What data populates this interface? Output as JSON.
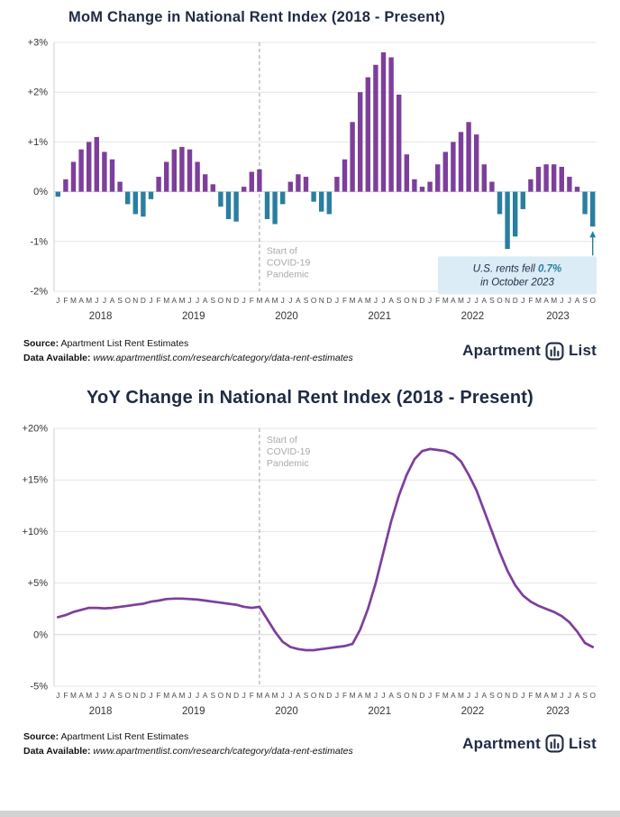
{
  "colors": {
    "title": "#1f2a44",
    "purple": "#7d3f9b",
    "teal": "#2a7e9f",
    "grid_line": "#e4e4e8",
    "zero_line": "#d6d6da",
    "axis_line": "#d0d0d4",
    "covid_line": "#b5b5b5",
    "covid_text": "#a9a9a9",
    "callout_bg": "#dcecf7",
    "bottom_strip": "#d2d2d2"
  },
  "footer": {
    "source_label": "Source:",
    "source_value": "Apartment List Rent Estimates",
    "data_label": "Data Available:",
    "data_value": "www.apartmentlist.com/research/category/data-rent-estimates",
    "logo_word1": "Apartment",
    "logo_word2": "List"
  },
  "chart_data": [
    {
      "type": "bar",
      "title": "MoM Change in National Rent Index (2018 - Present)",
      "ylim": [
        -2,
        3
      ],
      "yticks": [
        "+3%",
        "+2%",
        "+1%",
        "0%",
        "-1%",
        "-2%"
      ],
      "grid": true,
      "legend": "none",
      "month_letters": [
        "J",
        "F",
        "M",
        "A",
        "M",
        "J",
        "J",
        "A",
        "S",
        "O",
        "N",
        "D"
      ],
      "years": [
        {
          "label": "2018",
          "months": 12
        },
        {
          "label": "2019",
          "months": 12
        },
        {
          "label": "2020",
          "months": 12
        },
        {
          "label": "2021",
          "months": 12
        },
        {
          "label": "2022",
          "months": 12
        },
        {
          "label": "2023",
          "months": 10
        }
      ],
      "values": [
        -0.1,
        0.25,
        0.6,
        0.85,
        1.0,
        1.1,
        0.8,
        0.65,
        0.2,
        -0.25,
        -0.45,
        -0.5,
        -0.15,
        0.3,
        0.6,
        0.85,
        0.9,
        0.85,
        0.6,
        0.35,
        0.15,
        -0.3,
        -0.55,
        -0.6,
        0.1,
        0.4,
        0.45,
        -0.55,
        -0.65,
        -0.25,
        0.2,
        0.35,
        0.3,
        -0.2,
        -0.4,
        -0.45,
        0.3,
        0.65,
        1.4,
        2.0,
        2.3,
        2.55,
        2.8,
        2.7,
        1.95,
        0.75,
        0.25,
        0.1,
        0.2,
        0.55,
        0.8,
        1.0,
        1.2,
        1.4,
        1.15,
        0.55,
        0.2,
        -0.45,
        -1.15,
        -0.9,
        -0.35,
        0.25,
        0.5,
        0.55,
        0.55,
        0.5,
        0.3,
        0.1,
        -0.45,
        -0.7
      ],
      "bar_positive_color": "#7d3f9b",
      "bar_negative_color": "#2a7e9f",
      "covid": {
        "index": 26,
        "lines": [
          "Start of",
          "COVID-19",
          "Pandemic"
        ]
      },
      "callout": {
        "line1_prefix": "U.S. rents fell ",
        "line1_highlight": "0.7%",
        "line2": "in October 2023",
        "target_index": 69,
        "target_value": -0.7
      }
    },
    {
      "type": "line",
      "title": "YoY Change in National Rent Index (2018 - Present)",
      "ylim": [
        -5,
        20
      ],
      "yticks": [
        "+20%",
        "+15%",
        "+10%",
        "+5%",
        "0%",
        "-5%"
      ],
      "grid": true,
      "legend": "none",
      "month_letters": [
        "J",
        "F",
        "M",
        "A",
        "M",
        "J",
        "J",
        "A",
        "S",
        "O",
        "N",
        "D"
      ],
      "years": [
        {
          "label": "2018",
          "months": 12
        },
        {
          "label": "2019",
          "months": 12
        },
        {
          "label": "2020",
          "months": 12
        },
        {
          "label": "2021",
          "months": 12
        },
        {
          "label": "2022",
          "months": 12
        },
        {
          "label": "2023",
          "months": 10
        }
      ],
      "values": [
        1.7,
        1.9,
        2.2,
        2.4,
        2.6,
        2.6,
        2.55,
        2.6,
        2.7,
        2.8,
        2.9,
        3.0,
        3.2,
        3.3,
        3.45,
        3.5,
        3.5,
        3.45,
        3.4,
        3.3,
        3.2,
        3.1,
        3.0,
        2.9,
        2.7,
        2.6,
        2.7,
        1.5,
        0.3,
        -0.7,
        -1.2,
        -1.4,
        -1.5,
        -1.5,
        -1.4,
        -1.3,
        -1.2,
        -1.1,
        -0.9,
        0.5,
        2.5,
        5.0,
        8.0,
        11.0,
        13.5,
        15.5,
        17.0,
        17.8,
        18.0,
        17.9,
        17.8,
        17.5,
        16.8,
        15.5,
        14.0,
        12.0,
        10.0,
        8.0,
        6.2,
        4.8,
        3.8,
        3.2,
        2.8,
        2.5,
        2.2,
        1.8,
        1.2,
        0.3,
        -0.8,
        -1.2
      ],
      "line_color": "#7d3f9b",
      "covid": {
        "index": 26,
        "lines": [
          "Start of",
          "COVID-19",
          "Pandemic"
        ]
      }
    }
  ]
}
